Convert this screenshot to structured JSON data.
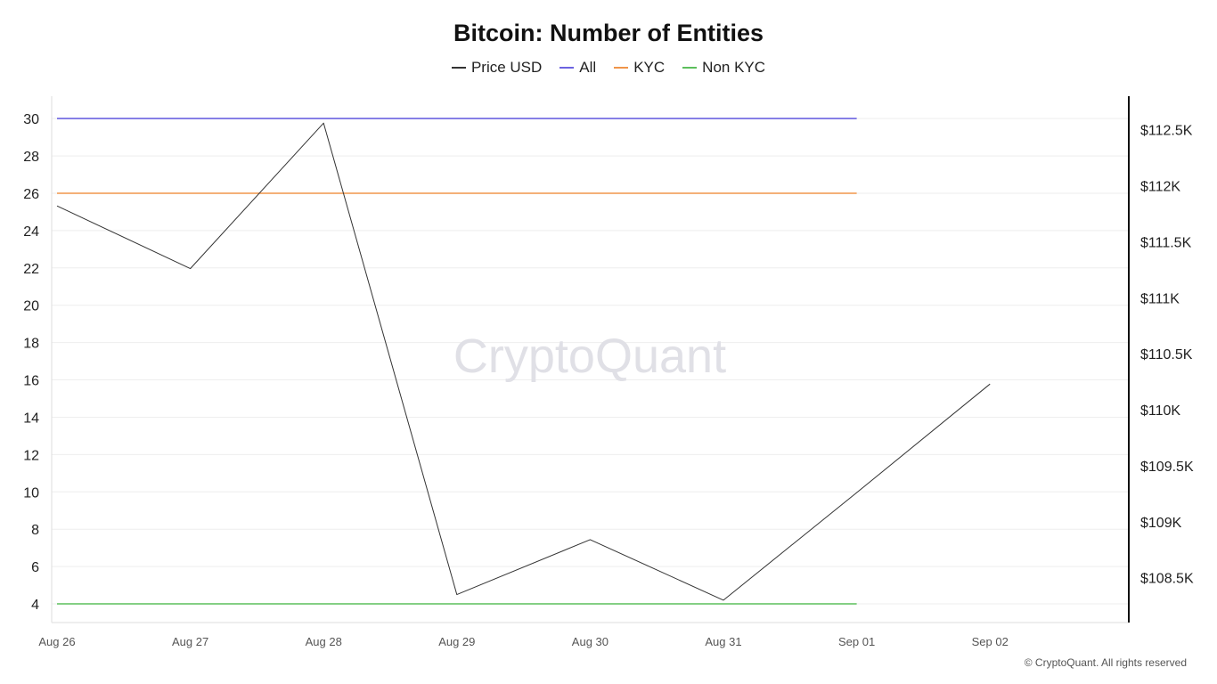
{
  "chart_data": {
    "type": "line",
    "title": "Bitcoin: Number of Entities",
    "watermark": "CryptoQuant",
    "credit": "© CryptoQuant. All rights reserved",
    "x": [
      "Aug 26",
      "Aug 27",
      "Aug 28",
      "Aug 29",
      "Aug 30",
      "Aug 31",
      "Sep 01",
      "Sep 02"
    ],
    "y_left": {
      "ticks": [
        4,
        6,
        8,
        10,
        12,
        14,
        16,
        18,
        20,
        22,
        24,
        26,
        28,
        30
      ],
      "tick_labels": [
        "4",
        "6",
        "8",
        "10",
        "12",
        "14",
        "16",
        "18",
        "20",
        "22",
        "24",
        "26",
        "28",
        "30"
      ],
      "range": [
        3.0,
        31.2
      ]
    },
    "y_right": {
      "ticks": [
        108500,
        109000,
        109500,
        110000,
        110500,
        111000,
        111500,
        112000,
        112500
      ],
      "tick_labels": [
        "$108.5K",
        "$109K",
        "$109.5K",
        "$110K",
        "$110.5K",
        "$111K",
        "$111.5K",
        "$112K",
        "$112.5K"
      ],
      "range": [
        108100,
        112800
      ]
    },
    "grid": true,
    "legend_position": "top-center",
    "series": [
      {
        "name": "Price USD",
        "axis": "right",
        "color": "#333333",
        "values": [
          111820,
          111260,
          112560,
          108350,
          108840,
          108300,
          109260,
          110230
        ]
      },
      {
        "name": "All",
        "axis": "left",
        "color": "#6c63e0",
        "values": [
          30,
          30,
          30,
          30,
          30,
          30,
          30,
          null
        ]
      },
      {
        "name": "KYC",
        "axis": "left",
        "color": "#f0954a",
        "values": [
          26,
          26,
          26,
          26,
          26,
          26,
          26,
          null
        ]
      },
      {
        "name": "Non KYC",
        "axis": "left",
        "color": "#5cbf5c",
        "values": [
          4,
          4,
          4,
          4,
          4,
          4,
          4,
          null
        ]
      }
    ]
  }
}
